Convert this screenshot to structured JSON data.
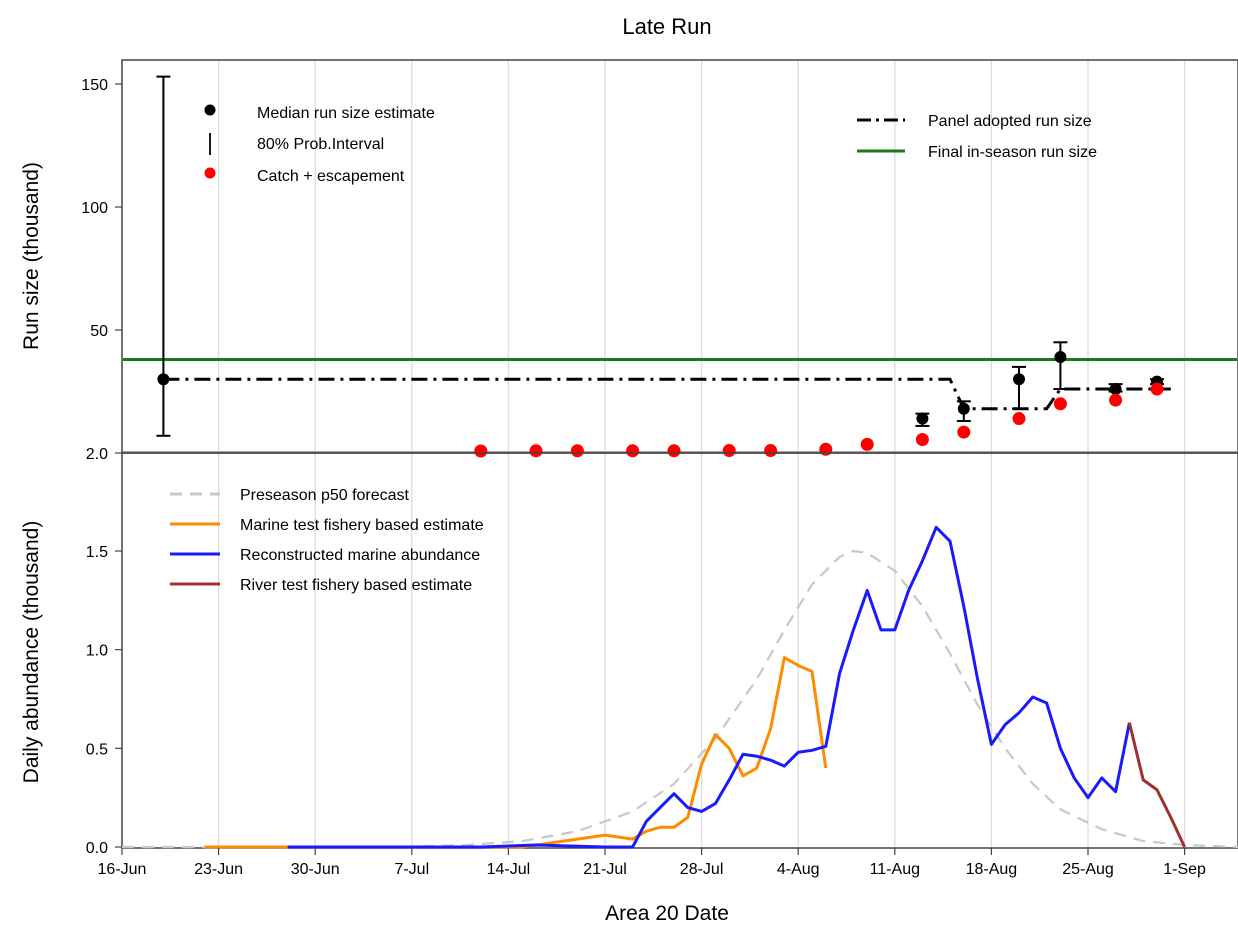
{
  "chart_data": [
    {
      "panel": "top",
      "type": "scatter",
      "title": "Late Run",
      "ylabel": "Run size (thousand)",
      "y_ticks": [
        "2.0",
        "50",
        "100",
        "150"
      ],
      "ylim": [
        0,
        155
      ],
      "legend_left": {
        "median": "Median run size estimate",
        "interval": "80% Prob.Interval",
        "catch": "Catch + escapement"
      },
      "legend_right": {
        "panel": "Panel adopted run size",
        "final": "Final in-season run size"
      },
      "final_inseason_run_size": 38,
      "colors": {
        "median": "#000000",
        "catch": "#ff0000",
        "final": "#1a7a1a",
        "panel": "#000000"
      },
      "median_estimates": [
        {
          "date": "2017-06-19",
          "median": 30,
          "lo": 7,
          "hi": 153
        },
        {
          "date": "2017-08-13",
          "median": 14,
          "lo": 11,
          "hi": 16
        },
        {
          "date": "2017-08-16",
          "median": 18,
          "lo": 13,
          "hi": 21
        },
        {
          "date": "2017-08-20",
          "median": 30,
          "lo": 18,
          "hi": 35
        },
        {
          "date": "2017-08-23",
          "median": 39,
          "lo": 26,
          "hi": 45
        },
        {
          "date": "2017-08-27",
          "median": 26,
          "lo": 25,
          "hi": 28
        },
        {
          "date": "2017-08-30",
          "median": 29,
          "lo": 28,
          "hi": 30
        }
      ],
      "catch_escapement": [
        {
          "date": "2017-07-12",
          "value": 0.8
        },
        {
          "date": "2017-07-16",
          "value": 0.9
        },
        {
          "date": "2017-07-19",
          "value": 0.9
        },
        {
          "date": "2017-07-23",
          "value": 0.9
        },
        {
          "date": "2017-07-26",
          "value": 0.9
        },
        {
          "date": "2017-07-30",
          "value": 1.0
        },
        {
          "date": "2017-08-02",
          "value": 1.0
        },
        {
          "date": "2017-08-06",
          "value": 1.5
        },
        {
          "date": "2017-08-09",
          "value": 3.5
        },
        {
          "date": "2017-08-13",
          "value": 5.5
        },
        {
          "date": "2017-08-16",
          "value": 8.5
        },
        {
          "date": "2017-08-20",
          "value": 14
        },
        {
          "date": "2017-08-23",
          "value": 20
        },
        {
          "date": "2017-08-27",
          "value": 21.5
        },
        {
          "date": "2017-08-30",
          "value": 26
        }
      ],
      "panel_adopted_run_size": [
        {
          "date": "2017-06-19",
          "value": 30
        },
        {
          "date": "2017-08-15",
          "value": 30
        },
        {
          "date": "2017-08-16",
          "value": 18
        },
        {
          "date": "2017-08-22",
          "value": 18
        },
        {
          "date": "2017-08-23",
          "value": 26
        },
        {
          "date": "2017-08-31",
          "value": 26
        }
      ]
    },
    {
      "panel": "bottom",
      "type": "line",
      "xlabel": "Area 20 Date",
      "ylabel": "Daily abundance (thousand)",
      "ylim": [
        0,
        1.7
      ],
      "y_ticks": [
        "0.0",
        "0.5",
        "1.0",
        "1.5"
      ],
      "x_tick_dates": [
        "2017-06-16",
        "2017-06-23",
        "2017-06-30",
        "2017-07-07",
        "2017-07-14",
        "2017-07-21",
        "2017-07-28",
        "2017-08-04",
        "2017-08-11",
        "2017-08-18",
        "2017-08-25",
        "2017-09-01"
      ],
      "x_ticks": [
        "16-Jun",
        "23-Jun",
        "30-Jun",
        "7-Jul",
        "14-Jul",
        "21-Jul",
        "28-Jul",
        "4-Aug",
        "11-Aug",
        "18-Aug",
        "25-Aug",
        "1-Sep"
      ],
      "series": [
        {
          "name": "Preseason p50 forecast",
          "color": "#c8c8c8",
          "style": "dashed",
          "points": [
            [
              "2017-06-16",
              0.0
            ],
            [
              "2017-07-06",
              0.0
            ],
            [
              "2017-07-11",
              0.01
            ],
            [
              "2017-07-15",
              0.03
            ],
            [
              "2017-07-19",
              0.08
            ],
            [
              "2017-07-23",
              0.18
            ],
            [
              "2017-07-26",
              0.32
            ],
            [
              "2017-07-29",
              0.55
            ],
            [
              "2017-08-01",
              0.85
            ],
            [
              "2017-08-03",
              1.1
            ],
            [
              "2017-08-05",
              1.33
            ],
            [
              "2017-08-07",
              1.47
            ],
            [
              "2017-08-08",
              1.5
            ],
            [
              "2017-08-09",
              1.49
            ],
            [
              "2017-08-11",
              1.4
            ],
            [
              "2017-08-13",
              1.22
            ],
            [
              "2017-08-15",
              0.98
            ],
            [
              "2017-08-17",
              0.72
            ],
            [
              "2017-08-19",
              0.5
            ],
            [
              "2017-08-21",
              0.32
            ],
            [
              "2017-08-23",
              0.19
            ],
            [
              "2017-08-26",
              0.09
            ],
            [
              "2017-08-29",
              0.03
            ],
            [
              "2017-09-01",
              0.01
            ],
            [
              "2017-09-05",
              0.0
            ]
          ]
        },
        {
          "name": "Marine test fishery based estimate",
          "color": "#ff8c00",
          "style": "solid",
          "points": [
            [
              "2017-06-22",
              0.0
            ],
            [
              "2017-06-28",
              0.0
            ],
            [
              "2017-07-15",
              0.0
            ],
            [
              "2017-07-17",
              0.02
            ],
            [
              "2017-07-19",
              0.04
            ],
            [
              "2017-07-21",
              0.06
            ],
            [
              "2017-07-23",
              0.04
            ],
            [
              "2017-07-24",
              0.08
            ],
            [
              "2017-07-25",
              0.1
            ],
            [
              "2017-07-26",
              0.1
            ],
            [
              "2017-07-27",
              0.15
            ],
            [
              "2017-07-28",
              0.42
            ],
            [
              "2017-07-29",
              0.57
            ],
            [
              "2017-07-30",
              0.5
            ],
            [
              "2017-07-31",
              0.36
            ],
            [
              "2017-08-01",
              0.4
            ],
            [
              "2017-08-02",
              0.6
            ],
            [
              "2017-08-03",
              0.96
            ],
            [
              "2017-08-04",
              0.92
            ],
            [
              "2017-08-05",
              0.89
            ],
            [
              "2017-08-06",
              0.4
            ]
          ]
        },
        {
          "name": "Reconstructed marine abundance",
          "color": "#1a1aff",
          "style": "solid",
          "points": [
            [
              "2017-06-28",
              0.0
            ],
            [
              "2017-07-12",
              0.0
            ],
            [
              "2017-07-16",
              0.01
            ],
            [
              "2017-07-21",
              0.0
            ],
            [
              "2017-07-23",
              0.0
            ],
            [
              "2017-07-24",
              0.13
            ],
            [
              "2017-07-26",
              0.27
            ],
            [
              "2017-07-27",
              0.2
            ],
            [
              "2017-07-28",
              0.18
            ],
            [
              "2017-07-29",
              0.22
            ],
            [
              "2017-07-30",
              0.34
            ],
            [
              "2017-07-31",
              0.47
            ],
            [
              "2017-08-01",
              0.46
            ],
            [
              "2017-08-02",
              0.44
            ],
            [
              "2017-08-03",
              0.41
            ],
            [
              "2017-08-04",
              0.48
            ],
            [
              "2017-08-05",
              0.49
            ],
            [
              "2017-08-06",
              0.51
            ],
            [
              "2017-08-07",
              0.88
            ],
            [
              "2017-08-08",
              1.1
            ],
            [
              "2017-08-09",
              1.3
            ],
            [
              "2017-08-10",
              1.1
            ],
            [
              "2017-08-11",
              1.1
            ],
            [
              "2017-08-12",
              1.3
            ],
            [
              "2017-08-13",
              1.45
            ],
            [
              "2017-08-14",
              1.62
            ],
            [
              "2017-08-15",
              1.55
            ],
            [
              "2017-08-16",
              1.22
            ],
            [
              "2017-08-17",
              0.85
            ],
            [
              "2017-08-18",
              0.52
            ],
            [
              "2017-08-19",
              0.62
            ],
            [
              "2017-08-20",
              0.68
            ],
            [
              "2017-08-21",
              0.76
            ],
            [
              "2017-08-22",
              0.73
            ],
            [
              "2017-08-23",
              0.5
            ],
            [
              "2017-08-24",
              0.35
            ],
            [
              "2017-08-25",
              0.25
            ],
            [
              "2017-08-26",
              0.35
            ],
            [
              "2017-08-27",
              0.28
            ],
            [
              "2017-08-28",
              0.63
            ]
          ]
        },
        {
          "name": "River test fishery based estimate",
          "color": "#a03030",
          "style": "solid",
          "points": [
            [
              "2017-08-28",
              0.63
            ],
            [
              "2017-08-29",
              0.34
            ],
            [
              "2017-08-30",
              0.29
            ],
            [
              "2017-08-31",
              0.15
            ],
            [
              "2017-09-01",
              0.0
            ]
          ]
        }
      ]
    }
  ]
}
